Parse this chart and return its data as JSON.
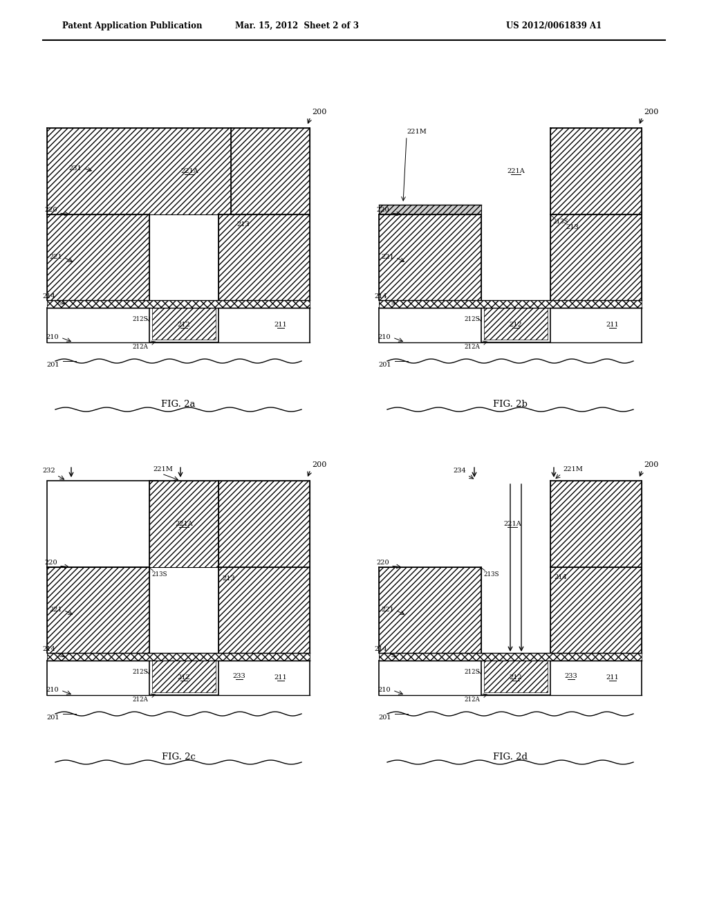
{
  "header_left": "Patent Application Publication",
  "header_mid": "Mar. 15, 2012  Sheet 2 of 3",
  "header_right": "US 2012/0061839 A1",
  "bg_color": "#ffffff",
  "fig_labels": [
    "FIG. 2a",
    "FIG. 2b",
    "FIG. 2c",
    "FIG. 2d"
  ]
}
